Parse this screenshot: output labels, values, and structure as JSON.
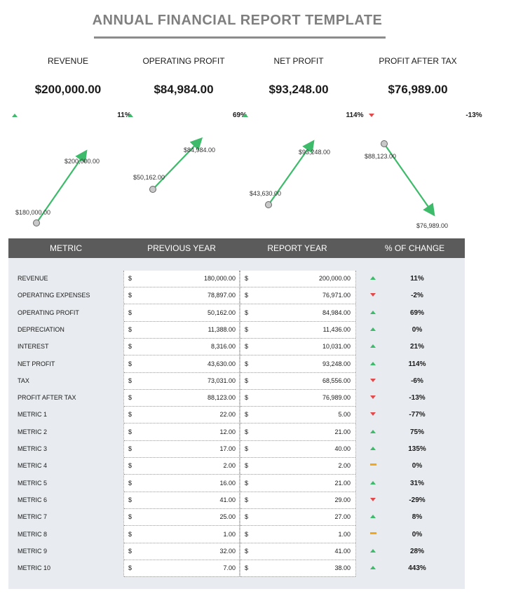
{
  "title": "ANNUAL FINANCIAL REPORT TEMPLATE",
  "kpis": [
    {
      "label": "REVENUE",
      "value": "$200,000.00",
      "change": "11%",
      "trend": "up",
      "prev_label": "$180,000.00",
      "curr_label": "$200,000.00"
    },
    {
      "label": "OPERATING PROFIT",
      "value": "$84,984.00",
      "change": "69%",
      "trend": "up",
      "prev_label": "$50,162.00",
      "curr_label": "$84,984.00"
    },
    {
      "label": "NET PROFIT",
      "value": "$93,248.00",
      "change": "114%",
      "trend": "up",
      "prev_label": "$43,630.00",
      "curr_label": "$93,248.00"
    },
    {
      "label": "PROFIT AFTER TAX",
      "value": "$76,989.00",
      "change": "-13%",
      "trend": "down",
      "prev_label": "$88,123.00",
      "curr_label": "$76,989.00"
    }
  ],
  "table": {
    "headers": {
      "metric": "METRIC",
      "previous": "PREVIOUS YEAR",
      "report": "REPORT YEAR",
      "change": "% OF CHANGE"
    },
    "currency": "$",
    "rows": [
      {
        "name": "REVENUE",
        "prev": "180,000.00",
        "curr": "200,000.00",
        "trend": "up",
        "change": "11%"
      },
      {
        "name": "OPERATING EXPENSES",
        "prev": "78,897.00",
        "curr": "76,971.00",
        "trend": "down",
        "change": "-2%"
      },
      {
        "name": "OPERATING PROFIT",
        "prev": "50,162.00",
        "curr": "84,984.00",
        "trend": "up",
        "change": "69%"
      },
      {
        "name": "DEPRECIATION",
        "prev": "11,388.00",
        "curr": "11,436.00",
        "trend": "up",
        "change": "0%"
      },
      {
        "name": "INTEREST",
        "prev": "8,316.00",
        "curr": "10,031.00",
        "trend": "up",
        "change": "21%"
      },
      {
        "name": "NET PROFIT",
        "prev": "43,630.00",
        "curr": "93,248.00",
        "trend": "up",
        "change": "114%"
      },
      {
        "name": "TAX",
        "prev": "73,031.00",
        "curr": "68,556.00",
        "trend": "down",
        "change": "-6%"
      },
      {
        "name": "PROFIT AFTER TAX",
        "prev": "88,123.00",
        "curr": "76,989.00",
        "trend": "down",
        "change": "-13%"
      },
      {
        "name": "METRIC 1",
        "prev": "22.00",
        "curr": "5.00",
        "trend": "down",
        "change": "-77%"
      },
      {
        "name": "METRIC 2",
        "prev": "12.00",
        "curr": "21.00",
        "trend": "up",
        "change": "75%"
      },
      {
        "name": "METRIC 3",
        "prev": "17.00",
        "curr": "40.00",
        "trend": "up",
        "change": "135%"
      },
      {
        "name": "METRIC 4",
        "prev": "2.00",
        "curr": "2.00",
        "trend": "flat",
        "change": "0%"
      },
      {
        "name": "METRIC 5",
        "prev": "16.00",
        "curr": "21.00",
        "trend": "up",
        "change": "31%"
      },
      {
        "name": "METRIC 6",
        "prev": "41.00",
        "curr": "29.00",
        "trend": "down",
        "change": "-29%"
      },
      {
        "name": "METRIC 7",
        "prev": "25.00",
        "curr": "27.00",
        "trend": "up",
        "change": "8%"
      },
      {
        "name": "METRIC 8",
        "prev": "1.00",
        "curr": "1.00",
        "trend": "flat",
        "change": "0%"
      },
      {
        "name": "METRIC 9",
        "prev": "32.00",
        "curr": "41.00",
        "trend": "up",
        "change": "28%"
      },
      {
        "name": "METRIC 10",
        "prev": "7.00",
        "curr": "38.00",
        "trend": "up",
        "change": "443%"
      }
    ]
  },
  "colors": {
    "up": "#3dbb6a",
    "down": "#e04a4a",
    "flat": "#f0a820",
    "header_bg": "#5b5b5b",
    "table_bg": "#e8ebef",
    "title": "#7f7f7f"
  }
}
